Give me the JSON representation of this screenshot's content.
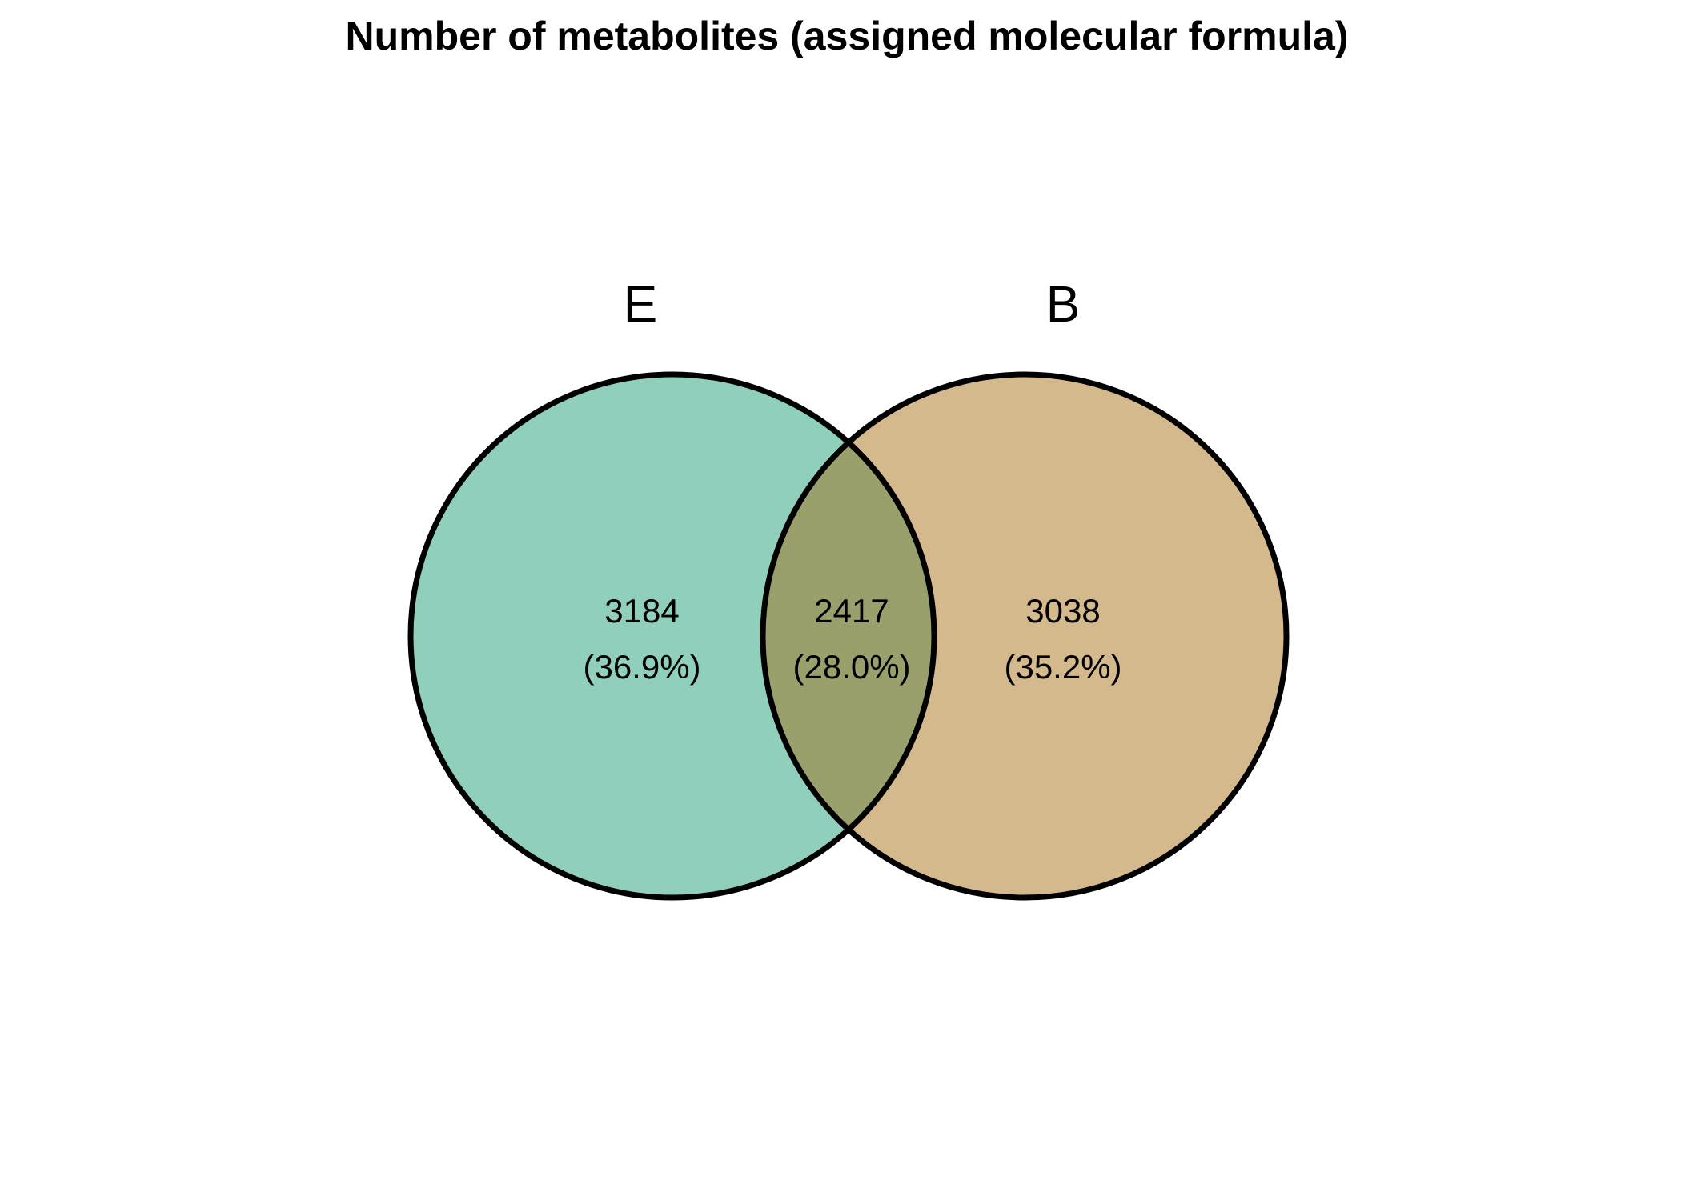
{
  "title": "Number of metabolites (assigned molecular formula)",
  "sets": [
    {
      "label": "E",
      "color": "#8fcfbb"
    },
    {
      "label": "B",
      "color": "#d4b98d"
    }
  ],
  "overlap_color": "#99a06b",
  "outline_color": "#000000",
  "regions": {
    "e_only": {
      "count": "3184",
      "percent": "(36.9%)"
    },
    "both": {
      "count": "2417",
      "percent": "(28.0%)"
    },
    "b_only": {
      "count": "3038",
      "percent": "(35.2%)"
    }
  }
}
